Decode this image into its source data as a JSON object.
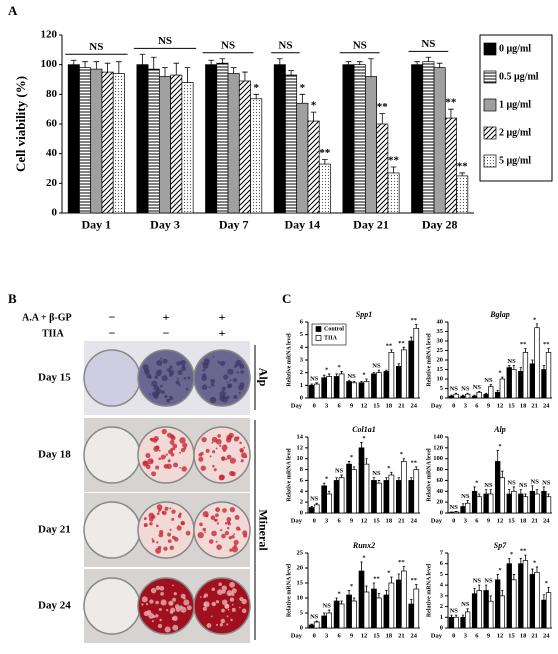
{
  "chart_data": [
    {
      "type": "bar",
      "panel_label": "A",
      "y_label": "Cell viability (%)",
      "categories": [
        "Day 1",
        "Day 3",
        "Day 7",
        "Day 14",
        "Day 21",
        "Day 28"
      ],
      "group_labels": [
        "NS",
        "NS",
        "NS",
        "NS",
        "NS",
        "NS"
      ],
      "series": [
        {
          "name": "0 μg/ml",
          "color": "#000000",
          "values": [
            100,
            100,
            100,
            100,
            100,
            100
          ],
          "errors": [
            3,
            7,
            3,
            4,
            2,
            2
          ],
          "labels": [
            null,
            null,
            null,
            null,
            null,
            null
          ]
        },
        {
          "name": "0.5 μg/ml",
          "color": "#ffffff",
          "pattern": "horizontal-lines",
          "values": [
            98,
            97,
            101,
            93,
            100,
            102
          ],
          "errors": [
            4,
            8,
            3,
            3,
            2,
            3
          ],
          "labels": [
            null,
            null,
            null,
            null,
            null,
            null
          ]
        },
        {
          "name": "1 μg/ml",
          "color": "#a0a0a0",
          "values": [
            97,
            92,
            94,
            74,
            92,
            98
          ],
          "errors": [
            5,
            6,
            4,
            6,
            12,
            3
          ],
          "labels": [
            null,
            null,
            null,
            "*",
            null,
            null
          ]
        },
        {
          "name": "2 μg/ml",
          "color": "#ffffff",
          "pattern": "diagonal-lines",
          "values": [
            95,
            93,
            89,
            62,
            60,
            64
          ],
          "errors": [
            6,
            8,
            6,
            6,
            7,
            6
          ],
          "labels": [
            null,
            null,
            null,
            "*",
            "**",
            "**"
          ]
        },
        {
          "name": "5 μg/ml",
          "color": "#ffffff",
          "pattern": "dots",
          "values": [
            94,
            88,
            77,
            33,
            27,
            25
          ],
          "errors": [
            8,
            10,
            3,
            3,
            4,
            2
          ],
          "labels": [
            null,
            null,
            "*",
            "**",
            "**",
            "**"
          ]
        }
      ],
      "ylim": [
        0,
        120
      ],
      "yticks": [
        0,
        20,
        40,
        60,
        80,
        100,
        120
      ],
      "legend": "upper right"
    },
    {
      "type": "bar",
      "panel_label": "C",
      "title": "Spp1",
      "x_label": "Day",
      "y_label": "Relative mRNA level",
      "categories": [
        "0",
        "3",
        "6",
        "9",
        "12",
        "15",
        "18",
        "21",
        "24"
      ],
      "series": [
        {
          "name": "Control",
          "color": "#000000",
          "values": [
            1,
            1.6,
            1.7,
            1.3,
            1.2,
            1.9,
            2.1,
            2.5,
            4.5
          ],
          "errors": [
            0.1,
            0.2,
            0.2,
            0.1,
            0.1,
            0.1,
            0.1,
            0.2,
            0.3
          ]
        },
        {
          "name": "TIIA",
          "color": "#ffffff",
          "values": [
            1.1,
            1.7,
            1.9,
            1.2,
            1.3,
            2,
            3.6,
            3.8,
            5.5
          ],
          "errors": [
            0.1,
            0.2,
            0.2,
            0.1,
            0.2,
            0.2,
            0.2,
            0.2,
            0.3
          ]
        }
      ],
      "annotations": [
        "NS",
        "*",
        "*",
        "NS",
        "*",
        "NS",
        "**",
        "**",
        "**"
      ],
      "ylim": [
        0,
        6
      ],
      "yticks": [
        0,
        1,
        2,
        3,
        4,
        5,
        6
      ],
      "legend": "upper left"
    },
    {
      "type": "bar",
      "title": "Bglap",
      "x_label": "Day",
      "y_label": "Relative mRNA level",
      "categories": [
        "0",
        "3",
        "6",
        "9",
        "12",
        "15",
        "18",
        "21",
        "24"
      ],
      "series": [
        {
          "name": "Control",
          "color": "#000000",
          "values": [
            1,
            1,
            1,
            2,
            3,
            16,
            14,
            18,
            15
          ],
          "errors": [
            0.5,
            0.5,
            0.5,
            0.5,
            1,
            1,
            2,
            2,
            2
          ]
        },
        {
          "name": "TIIA",
          "color": "#ffffff",
          "values": [
            2,
            2,
            3,
            6,
            10,
            15,
            24,
            37,
            24
          ],
          "errors": [
            0.5,
            0.5,
            0.5,
            1,
            1,
            2,
            2,
            2,
            2
          ]
        }
      ],
      "annotations": [
        "NS",
        "NS",
        "NS",
        "NS",
        "*",
        "NS",
        "**",
        "*",
        "**"
      ],
      "ylim": [
        0,
        40
      ],
      "yticks": [
        0,
        5,
        10,
        15,
        20,
        25,
        30,
        35,
        40
      ]
    },
    {
      "type": "bar",
      "title": "Col1a1",
      "x_label": "Day",
      "y_label": "Relative mRNA level",
      "categories": [
        "0",
        "3",
        "6",
        "9",
        "12",
        "15",
        "18",
        "21",
        "24"
      ],
      "series": [
        {
          "name": "Control",
          "color": "#000000",
          "values": [
            1,
            5,
            6,
            9,
            12,
            6,
            6,
            6,
            6
          ],
          "errors": [
            0.2,
            0.5,
            0.5,
            0.5,
            1,
            0.5,
            0.5,
            0.5,
            0.5
          ]
        },
        {
          "name": "TIIA",
          "color": "#ffffff",
          "values": [
            1.5,
            3.5,
            6.5,
            8,
            9,
            5.5,
            7,
            9.5,
            8
          ],
          "errors": [
            0.3,
            0.5,
            0.5,
            0.5,
            1,
            0.5,
            0.5,
            0.5,
            0.5
          ]
        }
      ],
      "annotations": [
        "NS",
        "*",
        "NS",
        "*",
        "*",
        "NS",
        "*",
        "*",
        "**"
      ],
      "ylim": [
        0,
        14
      ],
      "yticks": [
        0,
        2,
        4,
        6,
        8,
        10,
        12,
        14
      ]
    },
    {
      "type": "bar",
      "title": "Alp",
      "x_label": "Day",
      "y_label": "Relative mRNA level",
      "categories": [
        "0",
        "3",
        "6",
        "9",
        "12",
        "15",
        "18",
        "21",
        "24"
      ],
      "series": [
        {
          "name": "Control",
          "color": "#000000",
          "values": [
            1,
            12,
            40,
            35,
            95,
            35,
            35,
            40,
            40
          ],
          "errors": [
            1,
            5,
            8,
            8,
            20,
            8,
            8,
            10,
            8
          ]
        },
        {
          "name": "TIIA",
          "color": "#ffffff",
          "values": [
            2,
            18,
            30,
            35,
            65,
            40,
            30,
            35,
            30
          ],
          "errors": [
            1,
            5,
            5,
            8,
            12,
            8,
            5,
            8,
            5
          ]
        }
      ],
      "annotations": [
        "NS",
        "NS",
        "*",
        "NS",
        "*",
        "NS",
        "NS",
        "NS",
        "NS"
      ],
      "ylim": [
        0,
        140
      ],
      "yticks": [
        0,
        20,
        40,
        60,
        80,
        100,
        120,
        140
      ]
    },
    {
      "type": "bar",
      "title": "Runx2",
      "x_label": "Day",
      "y_label": "Relative mRNA level",
      "categories": [
        "0",
        "3",
        "6",
        "9",
        "12",
        "15",
        "18",
        "21",
        "24"
      ],
      "series": [
        {
          "name": "Control",
          "color": "#000000",
          "values": [
            1,
            4,
            9,
            11,
            19,
            13,
            11,
            16,
            8
          ],
          "errors": [
            0.3,
            1,
            1,
            1.5,
            3,
            2,
            1.5,
            2,
            1.5
          ]
        },
        {
          "name": "TIIA",
          "color": "#ffffff",
          "values": [
            2,
            5,
            8,
            9,
            12,
            10,
            15,
            19,
            13
          ],
          "errors": [
            0.3,
            1,
            1,
            1,
            2,
            1.5,
            2,
            1.5,
            1.5
          ]
        }
      ],
      "annotations": [
        "NS",
        "NS",
        "*",
        "*",
        "*",
        "**",
        "*",
        "**",
        "**"
      ],
      "ylim": [
        0,
        25
      ],
      "yticks": [
        0,
        5,
        10,
        15,
        20,
        25
      ]
    },
    {
      "type": "bar",
      "title": "Sp7",
      "x_label": "Day",
      "y_label": "Relative mRNA level",
      "categories": [
        "0",
        "3",
        "6",
        "9",
        "12",
        "15",
        "18",
        "21",
        "24"
      ],
      "series": [
        {
          "name": "Control",
          "color": "#000000",
          "values": [
            1,
            1,
            3.2,
            3.5,
            4.5,
            6,
            6,
            5,
            2.6
          ],
          "errors": [
            0.2,
            0.2,
            0.5,
            0.5,
            0.5,
            0.5,
            0.5,
            0.5,
            0.5
          ]
        },
        {
          "name": "TIIA",
          "color": "#ffffff",
          "values": [
            1,
            1.5,
            3.5,
            2.5,
            3,
            4.5,
            6.3,
            5.2,
            3.3
          ],
          "errors": [
            0.2,
            0.3,
            0.5,
            0.5,
            0.5,
            0.5,
            0.5,
            0.5,
            0.5
          ]
        }
      ],
      "annotations": [
        "NS",
        "NS",
        "NS",
        "NS",
        "*",
        "*",
        "**",
        "*",
        "*"
      ],
      "ylim": [
        0,
        7
      ],
      "yticks": [
        0,
        1,
        2,
        3,
        4,
        5,
        6,
        7
      ]
    }
  ],
  "panel_b": {
    "panel_label": "B",
    "conditions": [
      {
        "label": "A.A + β-GP",
        "signs": [
          "−",
          "+",
          "+"
        ]
      },
      {
        "label": "TIIA",
        "signs": [
          "−",
          "−",
          "+"
        ]
      }
    ],
    "rows": [
      "Day 15",
      "Day 18",
      "Day 21",
      "Day 24"
    ],
    "stains": [
      "Alp",
      "Mineral"
    ]
  }
}
